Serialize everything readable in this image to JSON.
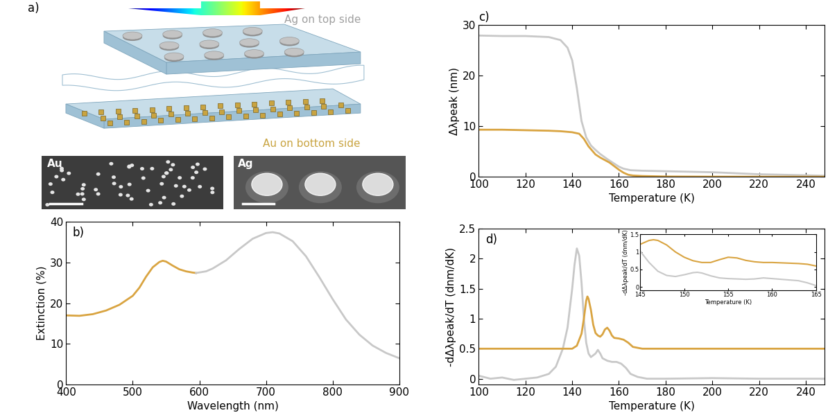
{
  "diagram": {
    "label": "a)",
    "top_text": "Ag on top side",
    "bottom_text": "Au on bottom side",
    "images": [
      "Au",
      "Ag"
    ]
  },
  "chart_data": [
    {
      "type": "line",
      "title": "b)",
      "x_label": "Wavelength (nm)",
      "y_label": "Extinction (%)",
      "xlim": [
        400,
        900
      ],
      "xticks": [
        400,
        500,
        600,
        700,
        800,
        900
      ],
      "ylim": [
        0,
        40
      ],
      "yticks": [
        0,
        10,
        20,
        30,
        40
      ],
      "series": [
        {
          "color": "#d9a441",
          "x": [
            400,
            420,
            440,
            460,
            480,
            500,
            510,
            520,
            530,
            540,
            545,
            550,
            560,
            570,
            580,
            590,
            595
          ],
          "values": [
            17,
            16.9,
            17.3,
            18.2,
            19.6,
            21.8,
            23.8,
            26.5,
            28.8,
            30.1,
            30.4,
            30.2,
            29.2,
            28.3,
            27.8,
            27.5,
            27.4
          ]
        },
        {
          "color": "#c8c8c8",
          "x": [
            595,
            610,
            620,
            640,
            660,
            680,
            700,
            710,
            720,
            740,
            760,
            780,
            800,
            820,
            840,
            860,
            880,
            900
          ],
          "values": [
            27.4,
            27.8,
            28.5,
            30.5,
            33.3,
            35.8,
            37.2,
            37.4,
            37.1,
            35.2,
            31.5,
            26.4,
            21,
            16,
            12.3,
            9.6,
            7.8,
            6.5
          ]
        }
      ]
    },
    {
      "type": "line",
      "title": "c)",
      "x_label": "Temperature (K)",
      "y_label": "Δλpeak (nm)",
      "xlim": [
        100,
        248
      ],
      "xticks": [
        100,
        120,
        140,
        160,
        180,
        200,
        220,
        240
      ],
      "ylim": [
        0,
        30
      ],
      "yticks": [
        0,
        10,
        20,
        30
      ],
      "series": [
        {
          "color": "#c8c8c8",
          "x": [
            100,
            110,
            120,
            130,
            135,
            138,
            140,
            142,
            144,
            146,
            148,
            150,
            152,
            155,
            158,
            160,
            162,
            165,
            170,
            180,
            190,
            200,
            210,
            220,
            230,
            240,
            248
          ],
          "values": [
            27.9,
            27.8,
            27.8,
            27.6,
            27.0,
            25.5,
            23.0,
            17.5,
            11.0,
            7.8,
            6.2,
            5.3,
            4.5,
            3.5,
            2.6,
            2.0,
            1.6,
            1.3,
            1.2,
            1.1,
            1.0,
            0.9,
            0.7,
            0.5,
            0.4,
            0.3,
            0.2
          ]
        },
        {
          "color": "#d9a441",
          "x": [
            100,
            110,
            120,
            130,
            135,
            140,
            143,
            145,
            147,
            150,
            152,
            154,
            156,
            158,
            160,
            162,
            164,
            166,
            170,
            180,
            200,
            220,
            248
          ],
          "values": [
            9.3,
            9.3,
            9.2,
            9.1,
            9.0,
            8.8,
            8.5,
            7.5,
            6.0,
            4.4,
            3.8,
            3.3,
            2.8,
            2.1,
            1.4,
            0.8,
            0.4,
            0.25,
            0.15,
            0.05,
            0.02,
            0.01,
            0.0
          ]
        }
      ]
    },
    {
      "type": "line",
      "title": "d)",
      "x_label": "Temperature (K)",
      "y_label": "-dΔλpeak/dT (dnm/dK)",
      "xlim": [
        100,
        248
      ],
      "xticks": [
        100,
        120,
        140,
        160,
        180,
        200,
        220,
        240
      ],
      "ylim": [
        -0.1,
        2.5
      ],
      "yticks": [
        0,
        0.5,
        1,
        1.5,
        2,
        2.5
      ],
      "series": [
        {
          "color": "#c8c8c8",
          "x": [
            100,
            105,
            110,
            115,
            120,
            125,
            130,
            133,
            136,
            138,
            140,
            141,
            142,
            143,
            144,
            145,
            146,
            147,
            148,
            150,
            151,
            152,
            153,
            155,
            157,
            159,
            161,
            163,
            165,
            168,
            172,
            180,
            200,
            220,
            248
          ],
          "values": [
            0.05,
            0.0,
            0.02,
            -0.02,
            0.0,
            0.02,
            0.08,
            0.2,
            0.5,
            0.85,
            1.5,
            1.9,
            2.17,
            2.05,
            1.6,
            1.0,
            0.6,
            0.42,
            0.36,
            0.42,
            0.48,
            0.42,
            0.34,
            0.3,
            0.28,
            0.28,
            0.25,
            0.18,
            0.08,
            0.03,
            0.0,
            0.0,
            0.01,
            0.0,
            0.0
          ]
        },
        {
          "color": "#d9a441",
          "x": [
            100,
            120,
            140,
            142,
            144,
            145,
            146,
            146.5,
            147,
            148,
            149,
            150,
            151,
            152,
            153,
            154,
            155,
            156,
            157,
            158,
            160,
            162,
            164,
            166,
            170,
            180,
            200,
            248
          ],
          "values": [
            0.5,
            0.5,
            0.5,
            0.55,
            0.75,
            1.0,
            1.3,
            1.37,
            1.33,
            1.15,
            0.9,
            0.76,
            0.72,
            0.7,
            0.74,
            0.82,
            0.85,
            0.8,
            0.72,
            0.68,
            0.67,
            0.65,
            0.6,
            0.53,
            0.5,
            0.5,
            0.5,
            0.5
          ]
        }
      ]
    },
    {
      "type": "line",
      "x_label": "Temperature (K)",
      "y_label": "-dΔλpeak/dT (dnm/dK)",
      "xlim": [
        145,
        165
      ],
      "xticks": [
        145,
        150,
        155,
        160,
        165
      ],
      "ylim": [
        -0.1,
        1.5
      ],
      "yticks": [
        0,
        0.5,
        1,
        1.5
      ],
      "series": [
        {
          "color": "#d9a441",
          "x": [
            145,
            146,
            146.5,
            147,
            148,
            149,
            150,
            151,
            152,
            153,
            154,
            155,
            156,
            157,
            158,
            159,
            160,
            161,
            162,
            163,
            164,
            165
          ],
          "values": [
            1.22,
            1.33,
            1.35,
            1.33,
            1.2,
            1.0,
            0.85,
            0.75,
            0.7,
            0.7,
            0.78,
            0.85,
            0.83,
            0.76,
            0.72,
            0.7,
            0.7,
            0.69,
            0.68,
            0.67,
            0.65,
            0.6
          ]
        },
        {
          "color": "#c8c8c8",
          "x": [
            145,
            146,
            147,
            148,
            149,
            150,
            151,
            151.5,
            152,
            153,
            154,
            155,
            156,
            157,
            158,
            159,
            160,
            161,
            162,
            163,
            164,
            165
          ],
          "values": [
            1.02,
            0.7,
            0.45,
            0.33,
            0.3,
            0.35,
            0.41,
            0.42,
            0.4,
            0.32,
            0.26,
            0.24,
            0.23,
            0.22,
            0.23,
            0.26,
            0.24,
            0.22,
            0.2,
            0.18,
            0.12,
            0.04
          ]
        }
      ]
    }
  ]
}
